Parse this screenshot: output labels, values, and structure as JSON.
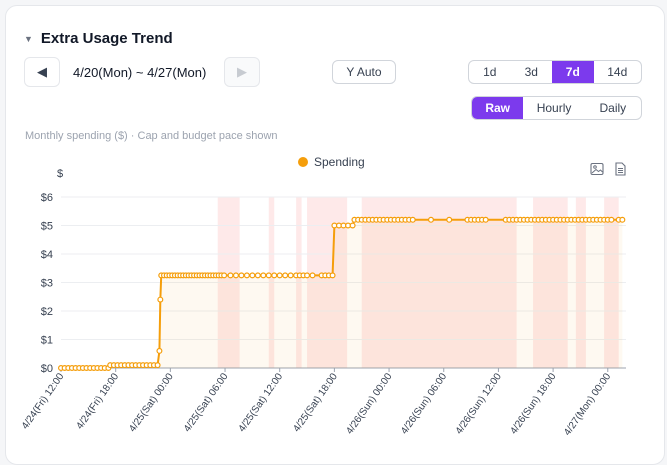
{
  "header": {
    "title": "Extra Usage Trend",
    "date_range": "4/20(Mon) ~ 4/27(Mon)",
    "y_auto_label": "Y Auto"
  },
  "range_options": [
    {
      "label": "1d",
      "active": false
    },
    {
      "label": "3d",
      "active": false
    },
    {
      "label": "7d",
      "active": true
    },
    {
      "label": "14d",
      "active": false
    }
  ],
  "mode_options": [
    {
      "label": "Raw",
      "active": true
    },
    {
      "label": "Hourly",
      "active": false
    },
    {
      "label": "Daily",
      "active": false
    }
  ],
  "subtitle": "Monthly spending ($) · Cap and budget pace shown",
  "icons": {
    "collapse": "caret-down-icon",
    "prev": "arrow-left-icon",
    "next": "arrow-right-icon",
    "save_image": "image-icon",
    "data_view": "document-icon"
  },
  "colors": {
    "accent": "#7c3aed",
    "series": "#f59e0b",
    "cap_band": "#fde2e2"
  },
  "chart_data": {
    "type": "line",
    "xlabel": "",
    "ylabel": "$",
    "ylim": [
      0,
      6
    ],
    "y_ticks": [
      "$0",
      "$1",
      "$2",
      "$3",
      "$4",
      "$5",
      "$6"
    ],
    "x_ticks": [
      {
        "label": "4/24(Fri) 12:00",
        "h": 0
      },
      {
        "label": "4/24(Fri) 18:00",
        "h": 6
      },
      {
        "label": "4/25(Sat) 00:00",
        "h": 12
      },
      {
        "label": "4/25(Sat) 06:00",
        "h": 18
      },
      {
        "label": "4/25(Sat) 12:00",
        "h": 24
      },
      {
        "label": "4/25(Sat) 18:00",
        "h": 30
      },
      {
        "label": "4/26(Sun) 00:00",
        "h": 36
      },
      {
        "label": "4/26(Sun) 06:00",
        "h": 42
      },
      {
        "label": "4/26(Sun) 12:00",
        "h": 48
      },
      {
        "label": "4/26(Sun) 18:00",
        "h": 54
      },
      {
        "label": "4/27(Mon) 00:00",
        "h": 60
      }
    ],
    "x_range_hours": [
      0,
      62
    ],
    "grid": true,
    "legend_position": "top-center",
    "series": [
      {
        "name": "Spending",
        "points": [
          [
            0.0,
            0.0
          ],
          [
            0.4,
            0.0
          ],
          [
            0.8,
            0.0
          ],
          [
            1.2,
            0.0
          ],
          [
            1.6,
            0.0
          ],
          [
            2.0,
            0.0
          ],
          [
            2.4,
            0.0
          ],
          [
            2.8,
            0.0
          ],
          [
            3.2,
            0.0
          ],
          [
            3.6,
            0.0
          ],
          [
            4.0,
            0.0
          ],
          [
            4.4,
            0.0
          ],
          [
            4.8,
            0.0
          ],
          [
            5.2,
            0.0
          ],
          [
            5.4,
            0.1
          ],
          [
            5.8,
            0.1
          ],
          [
            6.2,
            0.1
          ],
          [
            6.6,
            0.1
          ],
          [
            7.0,
            0.1
          ],
          [
            7.4,
            0.1
          ],
          [
            7.8,
            0.1
          ],
          [
            8.2,
            0.1
          ],
          [
            8.6,
            0.1
          ],
          [
            9.0,
            0.1
          ],
          [
            9.4,
            0.1
          ],
          [
            9.8,
            0.1
          ],
          [
            10.2,
            0.1
          ],
          [
            10.6,
            0.1
          ],
          [
            10.8,
            0.6
          ],
          [
            10.9,
            2.4
          ],
          [
            11.0,
            3.25
          ],
          [
            11.3,
            3.25
          ],
          [
            11.6,
            3.25
          ],
          [
            11.9,
            3.25
          ],
          [
            12.2,
            3.25
          ],
          [
            12.5,
            3.25
          ],
          [
            12.8,
            3.25
          ],
          [
            13.1,
            3.25
          ],
          [
            13.4,
            3.25
          ],
          [
            13.7,
            3.25
          ],
          [
            14.0,
            3.25
          ],
          [
            14.3,
            3.25
          ],
          [
            14.6,
            3.25
          ],
          [
            14.9,
            3.25
          ],
          [
            15.2,
            3.25
          ],
          [
            15.5,
            3.25
          ],
          [
            15.8,
            3.25
          ],
          [
            16.1,
            3.25
          ],
          [
            16.4,
            3.25
          ],
          [
            16.7,
            3.25
          ],
          [
            17.0,
            3.25
          ],
          [
            17.3,
            3.25
          ],
          [
            17.6,
            3.25
          ],
          [
            17.9,
            3.25
          ],
          [
            18.6,
            3.25
          ],
          [
            19.2,
            3.25
          ],
          [
            19.8,
            3.25
          ],
          [
            20.4,
            3.25
          ],
          [
            21.0,
            3.25
          ],
          [
            21.6,
            3.25
          ],
          [
            22.2,
            3.25
          ],
          [
            22.8,
            3.25
          ],
          [
            23.4,
            3.25
          ],
          [
            24.0,
            3.25
          ],
          [
            24.6,
            3.25
          ],
          [
            25.2,
            3.25
          ],
          [
            25.8,
            3.25
          ],
          [
            26.2,
            3.25
          ],
          [
            26.6,
            3.25
          ],
          [
            27.0,
            3.25
          ],
          [
            27.6,
            3.25
          ],
          [
            28.6,
            3.25
          ],
          [
            29.0,
            3.25
          ],
          [
            29.4,
            3.25
          ],
          [
            29.8,
            3.25
          ],
          [
            30.0,
            5.0
          ],
          [
            30.5,
            5.0
          ],
          [
            31.0,
            5.0
          ],
          [
            31.5,
            5.0
          ],
          [
            32.0,
            5.0
          ],
          [
            32.2,
            5.2
          ],
          [
            32.6,
            5.2
          ],
          [
            33.0,
            5.2
          ],
          [
            33.4,
            5.2
          ],
          [
            33.8,
            5.2
          ],
          [
            34.2,
            5.2
          ],
          [
            34.6,
            5.2
          ],
          [
            35.0,
            5.2
          ],
          [
            35.4,
            5.2
          ],
          [
            35.8,
            5.2
          ],
          [
            36.2,
            5.2
          ],
          [
            36.6,
            5.2
          ],
          [
            37.0,
            5.2
          ],
          [
            37.4,
            5.2
          ],
          [
            37.8,
            5.2
          ],
          [
            38.2,
            5.2
          ],
          [
            38.6,
            5.2
          ],
          [
            40.6,
            5.2
          ],
          [
            42.6,
            5.2
          ],
          [
            44.6,
            5.2
          ],
          [
            45.0,
            5.2
          ],
          [
            45.4,
            5.2
          ],
          [
            45.8,
            5.2
          ],
          [
            46.2,
            5.2
          ],
          [
            46.6,
            5.2
          ],
          [
            48.8,
            5.2
          ],
          [
            49.2,
            5.2
          ],
          [
            49.6,
            5.2
          ],
          [
            50.0,
            5.2
          ],
          [
            50.4,
            5.2
          ],
          [
            50.8,
            5.2
          ],
          [
            51.2,
            5.2
          ],
          [
            51.6,
            5.2
          ],
          [
            52.0,
            5.2
          ],
          [
            52.4,
            5.2
          ],
          [
            52.8,
            5.2
          ],
          [
            53.2,
            5.2
          ],
          [
            53.6,
            5.2
          ],
          [
            54.0,
            5.2
          ],
          [
            54.4,
            5.2
          ],
          [
            54.8,
            5.2
          ],
          [
            55.2,
            5.2
          ],
          [
            55.6,
            5.2
          ],
          [
            56.0,
            5.2
          ],
          [
            56.4,
            5.2
          ],
          [
            56.8,
            5.2
          ],
          [
            57.2,
            5.2
          ],
          [
            57.6,
            5.2
          ],
          [
            58.0,
            5.2
          ],
          [
            58.4,
            5.2
          ],
          [
            58.8,
            5.2
          ],
          [
            59.2,
            5.2
          ],
          [
            59.6,
            5.2
          ],
          [
            60.0,
            5.2
          ],
          [
            60.4,
            5.2
          ],
          [
            61.2,
            5.2
          ],
          [
            61.6,
            5.2
          ]
        ]
      }
    ],
    "cap_bands_hours": [
      [
        17.2,
        19.6
      ],
      [
        22.8,
        23.4
      ],
      [
        25.8,
        26.4
      ],
      [
        27.0,
        31.4
      ],
      [
        33.0,
        50.0
      ],
      [
        51.8,
        55.6
      ],
      [
        56.5,
        57.6
      ],
      [
        59.6,
        61.2
      ]
    ]
  }
}
